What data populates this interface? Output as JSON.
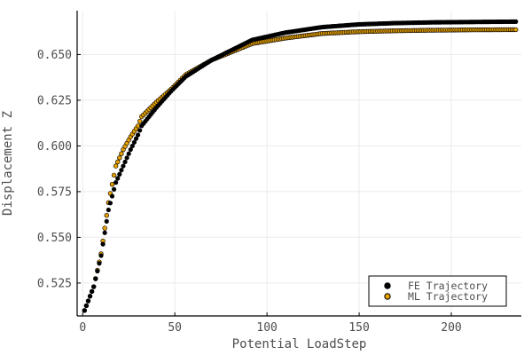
{
  "chart_data": {
    "type": "scatter",
    "title": "",
    "xlabel": "Potential LoadStep",
    "ylabel": "Displacement Z",
    "xlim": [
      -3,
      238
    ],
    "ylim": [
      0.507,
      0.674
    ],
    "xticks": [
      0,
      50,
      100,
      150,
      200
    ],
    "yticks": [
      0.525,
      0.55,
      0.575,
      0.6,
      0.625,
      0.65
    ],
    "xtick_labels": [
      "0",
      "50",
      "100",
      "150",
      "200"
    ],
    "ytick_labels": [
      "0.525",
      "0.550",
      "0.575",
      "0.600",
      "0.625",
      "0.650"
    ],
    "grid": true,
    "legend_position": "bottom-right",
    "series": [
      {
        "name": "FE Trajectory",
        "color": "#000000",
        "x": [
          1,
          6,
          10,
          14,
          18,
          22,
          26,
          30,
          32,
          40,
          48,
          56,
          70,
          92,
          110,
          130,
          150,
          170,
          190,
          210,
          235
        ],
        "y": [
          0.51,
          0.523,
          0.54,
          0.565,
          0.58,
          0.589,
          0.598,
          0.606,
          0.611,
          0.621,
          0.63,
          0.638,
          0.647,
          0.658,
          0.662,
          0.665,
          0.6665,
          0.6672,
          0.6676,
          0.6678,
          0.668
        ]
      },
      {
        "name": "ML Trajectory",
        "color": "#e6a000",
        "x": [
          1,
          6,
          10,
          14,
          18,
          22,
          26,
          30,
          32,
          40,
          48,
          56,
          70,
          92,
          110,
          130,
          150,
          170,
          190,
          210,
          235
        ],
        "y": [
          0.51,
          0.523,
          0.541,
          0.569,
          0.589,
          0.598,
          0.605,
          0.611,
          0.616,
          0.624,
          0.631,
          0.639,
          0.647,
          0.656,
          0.659,
          0.6615,
          0.6625,
          0.663,
          0.6633,
          0.6635,
          0.6636
        ]
      }
    ]
  }
}
